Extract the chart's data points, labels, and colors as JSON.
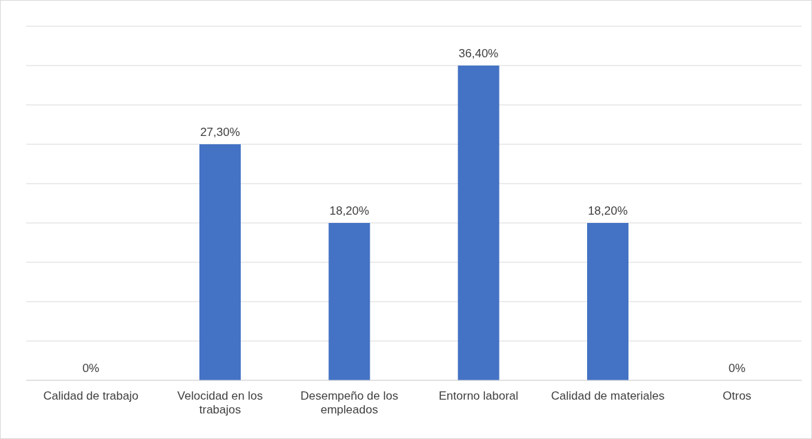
{
  "chart_data": {
    "type": "bar",
    "categories": [
      "Calidad de trabajo",
      "Velocidad en los trabajos",
      "Desempeño de los empleados",
      "Entorno laboral",
      "Calidad de materiales",
      "Otros"
    ],
    "values": [
      0,
      27.3,
      18.2,
      36.4,
      18.2,
      0
    ],
    "value_labels": [
      "0%",
      "27,30%",
      "18,20%",
      "36,40%",
      "18,20%",
      "0%"
    ],
    "color": "#4472c4",
    "ylim": [
      0,
      40.95
    ],
    "yticks": [
      {
        "value": 0,
        "label": null
      },
      {
        "value": 4.55,
        "label": null
      },
      {
        "value": 9.1,
        "label": null
      },
      {
        "value": 13.65,
        "label": null
      },
      {
        "value": 18.2,
        "label": null
      },
      {
        "value": 22.75,
        "label": null
      },
      {
        "value": 27.3,
        "label": null
      },
      {
        "value": 31.85,
        "label": null
      },
      {
        "value": 36.4,
        "label": null
      },
      {
        "value": 40.95,
        "label": null
      }
    ],
    "tick_labels": "x",
    "grid": "y"
  }
}
